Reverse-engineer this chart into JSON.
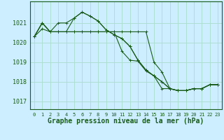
{
  "title": "Graphe pression niveau de la mer (hPa)",
  "background_color": "#cceeff",
  "grid_color": "#aaddcc",
  "line_color": "#1a5c1a",
  "ylim": [
    1016.6,
    1022.1
  ],
  "xlim": [
    -0.5,
    23.5
  ],
  "yticks": [
    1017,
    1018,
    1019,
    1020,
    1021
  ],
  "xticks": [
    0,
    1,
    2,
    3,
    4,
    5,
    6,
    7,
    8,
    9,
    10,
    11,
    12,
    13,
    14,
    15,
    16,
    17,
    18,
    19,
    20,
    21,
    22,
    23
  ],
  "lines": [
    [
      1020.3,
      1020.7,
      1020.55,
      1021.0,
      1021.0,
      1021.25,
      1021.55,
      1021.35,
      1021.1,
      1020.65,
      1020.4,
      1020.2,
      1019.8,
      1019.1,
      1018.6,
      1018.3,
      1018.0,
      1017.65,
      1017.55,
      1017.55,
      1017.65,
      1017.65,
      1017.85,
      1017.85
    ],
    [
      1020.3,
      1021.0,
      1020.55,
      1020.55,
      1020.55,
      1021.25,
      1021.55,
      1021.35,
      1021.1,
      1020.65,
      1020.4,
      1020.2,
      1019.8,
      1019.1,
      1018.6,
      1018.3,
      1018.0,
      1017.65,
      1017.55,
      1017.55,
      1017.65,
      1017.65,
      1017.85,
      1017.85
    ],
    [
      1020.3,
      1021.0,
      1020.55,
      1020.55,
      1020.55,
      1020.55,
      1020.55,
      1020.55,
      1020.55,
      1020.55,
      1020.55,
      1019.55,
      1019.1,
      1019.05,
      1018.55,
      1018.3,
      1017.65,
      1017.65,
      1017.55,
      1017.55,
      1017.65,
      1017.65,
      1017.85,
      1017.85
    ],
    [
      1020.3,
      1021.0,
      1020.55,
      1020.55,
      1020.55,
      1020.55,
      1020.55,
      1020.55,
      1020.55,
      1020.55,
      1020.55,
      1020.55,
      1020.55,
      1020.55,
      1020.55,
      1019.0,
      1018.5,
      1017.65,
      1017.55,
      1017.55,
      1017.65,
      1017.65,
      1017.85,
      1017.85
    ]
  ],
  "ytick_fontsize": 6,
  "xtick_fontsize": 5,
  "xlabel_fontsize": 7
}
